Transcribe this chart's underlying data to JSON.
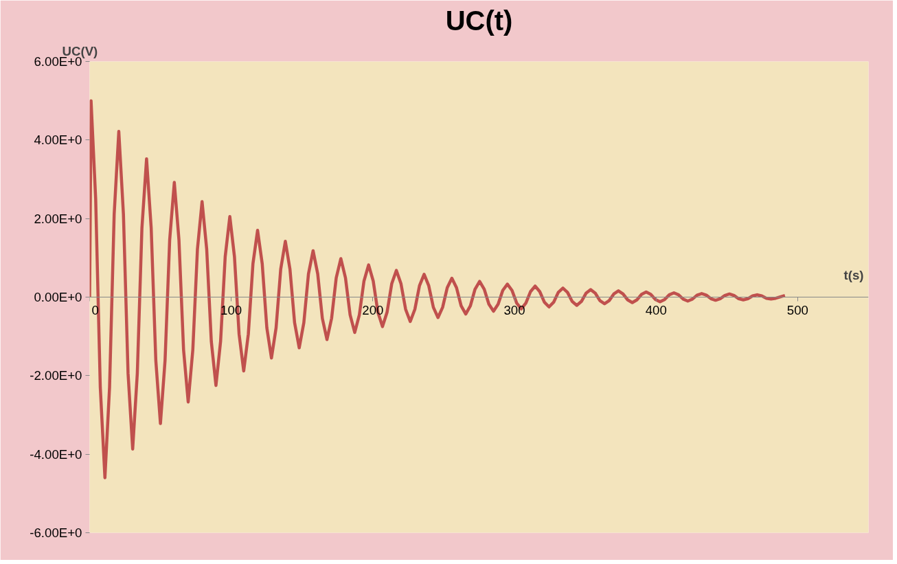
{
  "chart_data": {
    "type": "line",
    "title": "UC(t)",
    "xlabel": "t(s)",
    "ylabel": "UC(V)",
    "xlim": [
      0,
      550
    ],
    "xticks": [
      0,
      100,
      200,
      300,
      400,
      500
    ],
    "ylim": [
      -6,
      6
    ],
    "yticks": [
      {
        "value": -6,
        "label": "-6.00E+0"
      },
      {
        "value": -4,
        "label": "-4.00E+0"
      },
      {
        "value": -2,
        "label": "-2.00E+0"
      },
      {
        "value": 0,
        "label": "0.00E+0"
      },
      {
        "value": 2,
        "label": "2.00E+0"
      },
      {
        "value": 4,
        "label": "4.00E+0"
      },
      {
        "value": 6,
        "label": "6.00E+0"
      }
    ],
    "grid": false,
    "marker": "none",
    "line_style": "solid",
    "series": [
      {
        "color": "#c0504d",
        "x": [
          0,
          1,
          4.27,
          7.53,
          10.8,
          14.07,
          17.33,
          20.6,
          23.87,
          27.13,
          30.4,
          33.67,
          36.93,
          40.2,
          43.47,
          46.73,
          50,
          53.27,
          56.53,
          59.8,
          63.07,
          66.33,
          69.6,
          72.87,
          76.13,
          79.4,
          82.67,
          85.93,
          89.2,
          92.47,
          95.73,
          99,
          102.27,
          105.53,
          108.8,
          112.07,
          115.33,
          118.6,
          121.87,
          125.13,
          128.4,
          131.67,
          134.93,
          138.2,
          141.47,
          144.73,
          148,
          151.27,
          154.53,
          157.8,
          161.07,
          164.33,
          167.6,
          170.87,
          174.13,
          177.4,
          180.67,
          183.93,
          187.2,
          190.47,
          193.73,
          197,
          200.27,
          203.53,
          206.8,
          210.07,
          213.33,
          216.6,
          219.87,
          223.13,
          226.4,
          229.67,
          232.93,
          236.2,
          239.47,
          242.73,
          246,
          249.27,
          252.53,
          255.8,
          259.07,
          262.33,
          265.6,
          268.87,
          272.13,
          275.4,
          278.67,
          281.93,
          285.2,
          288.47,
          291.73,
          295,
          298.27,
          301.53,
          304.8,
          308.07,
          311.33,
          314.6,
          317.87,
          321.13,
          324.4,
          327.67,
          330.93,
          334.2,
          337.47,
          340.73,
          344,
          347.27,
          350.53,
          353.8,
          357.07,
          360.33,
          363.6,
          366.87,
          370.13,
          373.4,
          376.67,
          379.93,
          383.2,
          386.47,
          389.73,
          393,
          396.27,
          399.53,
          402.8,
          406.07,
          409.33,
          412.6,
          415.87,
          419.13,
          422.4,
          425.67,
          428.93,
          432.2,
          435.47,
          438.73,
          442,
          445.27,
          448.53,
          451.8,
          455.07,
          458.33,
          461.6,
          464.87,
          468.13,
          471.4,
          474.67,
          477.93,
          481.2,
          484.47,
          491
        ],
        "values": [
          0,
          5.0,
          2.5,
          -2.3,
          -4.6,
          -2.3,
          2.11,
          4.22,
          2.11,
          -1.94,
          -3.87,
          -1.94,
          1.76,
          3.52,
          1.76,
          -1.61,
          -3.22,
          -1.61,
          1.46,
          2.92,
          1.46,
          -1.34,
          -2.67,
          -1.34,
          1.22,
          2.43,
          1.22,
          -1.13,
          -2.25,
          -1.13,
          1.03,
          2.05,
          1.03,
          -0.94,
          -1.88,
          -0.94,
          0.85,
          1.7,
          0.85,
          -0.78,
          -1.55,
          -0.78,
          0.71,
          1.42,
          0.71,
          -0.65,
          -1.29,
          -0.65,
          0.59,
          1.18,
          0.59,
          -0.54,
          -1.08,
          -0.54,
          0.49,
          0.98,
          0.49,
          -0.45,
          -0.9,
          -0.45,
          0.41,
          0.82,
          0.41,
          -0.38,
          -0.75,
          -0.38,
          0.34,
          0.68,
          0.34,
          -0.31,
          -0.62,
          -0.31,
          0.29,
          0.58,
          0.29,
          -0.26,
          -0.52,
          -0.26,
          0.24,
          0.48,
          0.24,
          -0.22,
          -0.43,
          -0.22,
          0.2,
          0.4,
          0.2,
          -0.18,
          -0.36,
          -0.18,
          0.17,
          0.33,
          0.17,
          -0.15,
          -0.3,
          -0.15,
          0.14,
          0.28,
          0.14,
          -0.13,
          -0.25,
          -0.13,
          0.12,
          0.23,
          0.12,
          -0.11,
          -0.21,
          -0.11,
          0.1,
          0.19,
          0.1,
          -0.09,
          -0.17,
          -0.09,
          0.08,
          0.16,
          0.08,
          -0.07,
          -0.14,
          -0.07,
          0.07,
          0.13,
          0.07,
          -0.06,
          -0.12,
          -0.06,
          0.06,
          0.11,
          0.06,
          -0.05,
          -0.1,
          -0.05,
          0.05,
          0.09,
          0.05,
          -0.04,
          -0.08,
          -0.04,
          0.04,
          0.08,
          0.04,
          -0.04,
          -0.07,
          -0.04,
          0.03,
          0.06,
          0.03,
          -0.03,
          -0.05,
          -0.03,
          0.04
        ]
      }
    ]
  }
}
